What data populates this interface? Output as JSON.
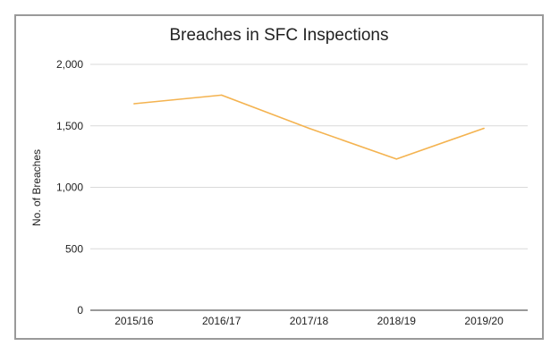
{
  "chart_data": {
    "type": "line",
    "title": "Breaches in SFC Inspections",
    "xlabel": "",
    "ylabel": "No. of Breaches",
    "categories": [
      "2015/16",
      "2016/17",
      "2017/18",
      "2018/19",
      "2019/20"
    ],
    "series": [
      {
        "values": [
          1680,
          1750,
          1480,
          1230,
          1480
        ],
        "color": "#f4b350"
      }
    ],
    "ylim": [
      0,
      2000
    ],
    "yticks": [
      0,
      500,
      1000,
      1500,
      2000
    ],
    "ytick_labels": [
      "0",
      "500",
      "1,000",
      "1,500",
      "2,000"
    ],
    "grid": true,
    "legend": "none"
  }
}
